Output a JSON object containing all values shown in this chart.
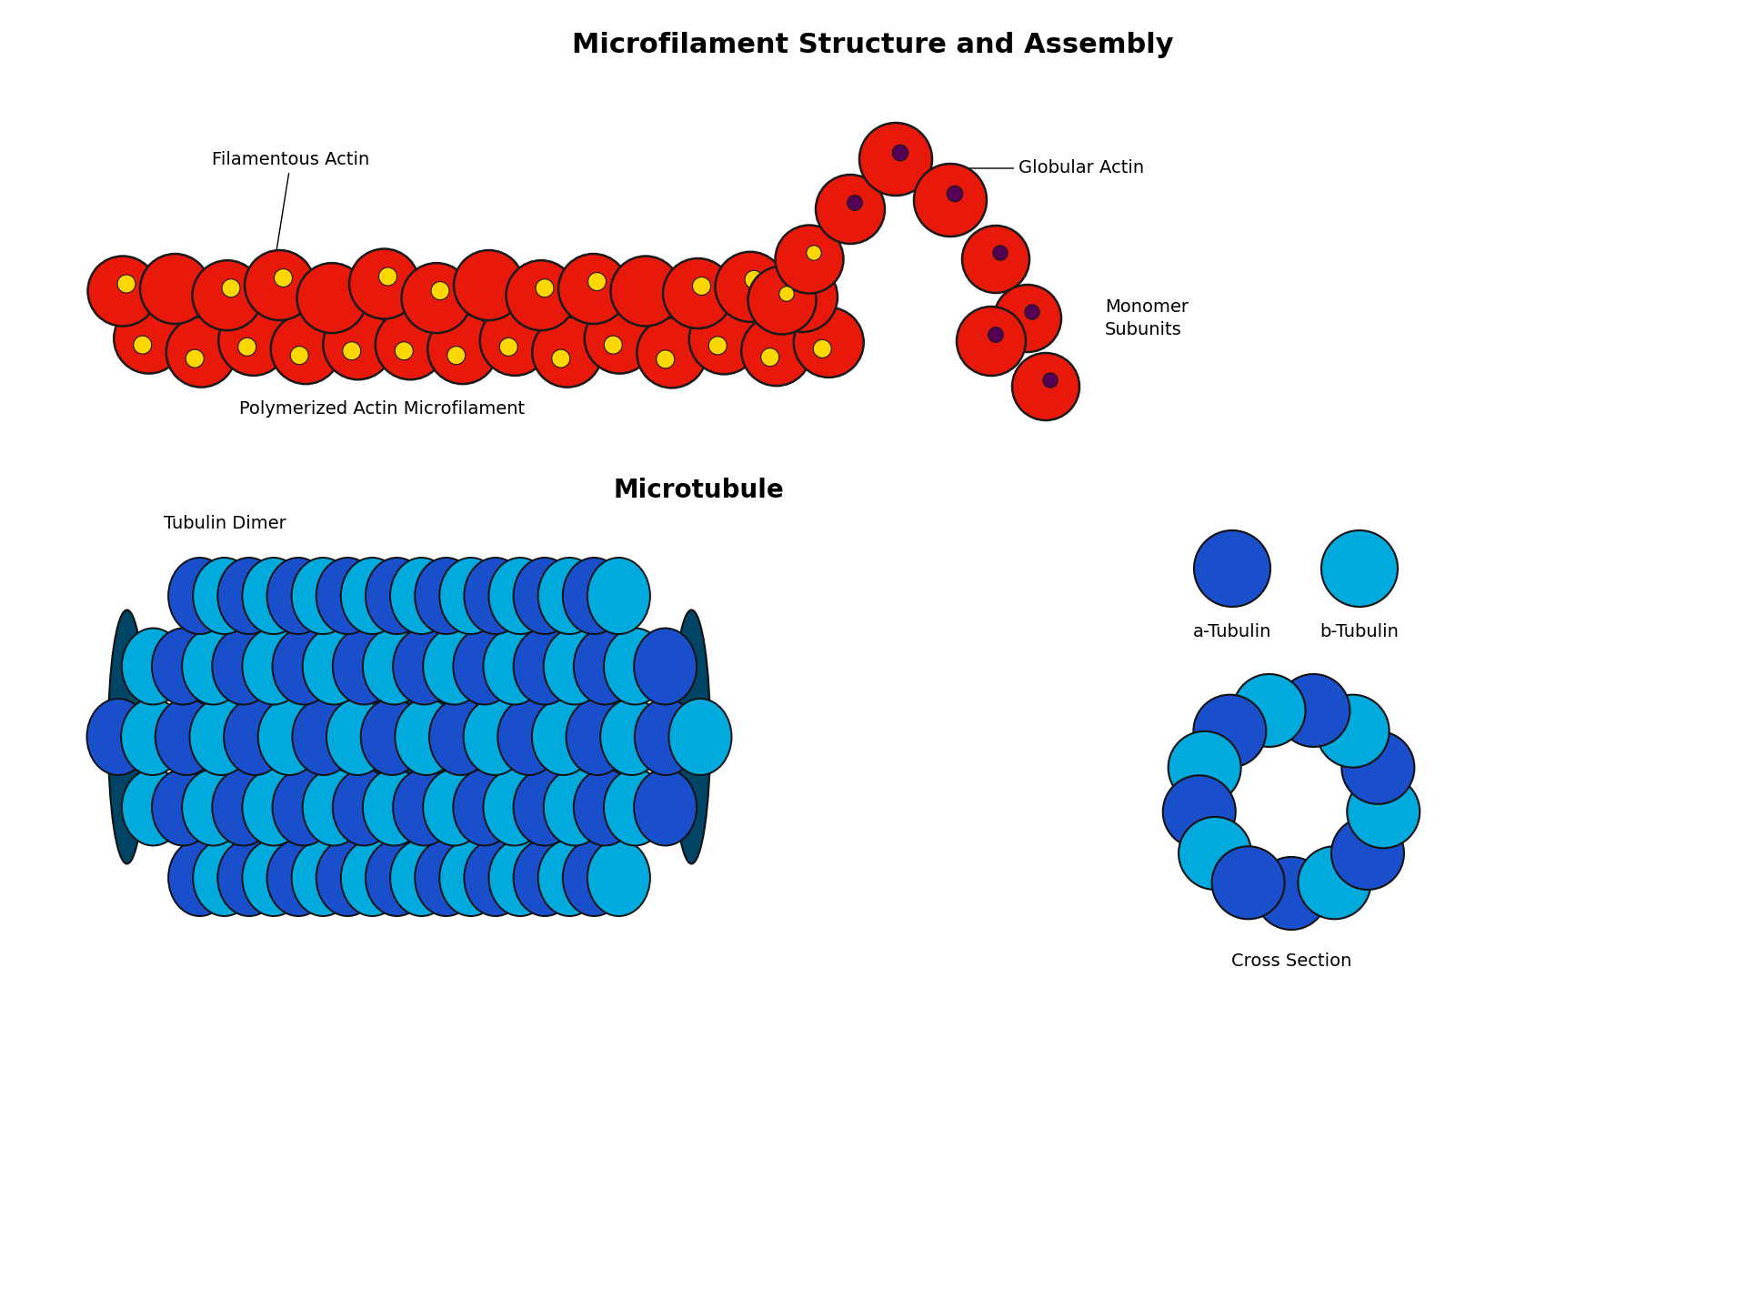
{
  "title_actin": "Microfilament Structure and Assembly",
  "title_microtubule": "Microtubule",
  "label_filamentous": "Filamentous Actin",
  "label_polymerized": "Polymerized Actin Microfilament",
  "label_globular": "Globular Actin",
  "label_monomer": "Monomer\nSubunits",
  "label_tubulin_dimer": "Tubulin Dimer",
  "label_a_tubulin": "a-Tubulin",
  "label_b_tubulin": "b-Tubulin",
  "label_cross_section": "Cross Section",
  "actin_color": "#E8190A",
  "actin_edge": "#1a1a1a",
  "actin_dot_color": "#FFD700",
  "globular_dot_color": "#550055",
  "alpha_tubulin_color": "#1A4FCC",
  "beta_tubulin_color": "#00AADD",
  "tubulin_edge": "#111111",
  "lumen_color": "#004466",
  "bg_color": "#FFFFFF",
  "title_fontsize": 22,
  "label_fontsize": 14,
  "section_title_fontsize": 20
}
